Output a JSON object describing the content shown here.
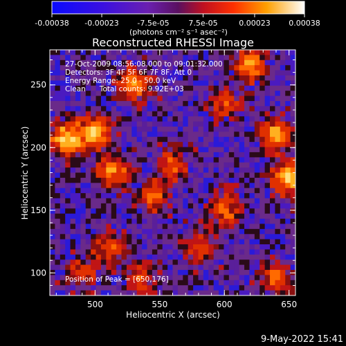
{
  "colorbar": {
    "ticks": [
      "-0.00038",
      "-0.00023",
      "-7.5e-05",
      "7.5e-05",
      "0.00023",
      "0.00038"
    ],
    "unit_label": "(photons cm⁻² s⁻¹ asec⁻²)",
    "colors": [
      "#1010ff",
      "#4010d0",
      "#7020a0",
      "#a02030",
      "#e02000",
      "#ff6000",
      "#ffb000",
      "#ffffff"
    ]
  },
  "chart_data": {
    "type": "heatmap",
    "title": "Reconstructed RHESSI Image",
    "xlabel": "Heliocentric X (arcsec)",
    "ylabel": "Heliocentric Y (arcsec)",
    "xlim": [
      465,
      655
    ],
    "ylim": [
      82,
      278
    ],
    "xticks": [
      "500",
      "550",
      "600",
      "650"
    ],
    "yticks": [
      "100",
      "150",
      "200",
      "250"
    ],
    "colorbar_range": [
      -0.00038,
      0.00038
    ],
    "peak": [
      650,
      176
    ],
    "hot_regions": [
      {
        "x": 478,
        "y": 207,
        "level": 1.0
      },
      {
        "x": 500,
        "y": 212,
        "level": 0.85
      },
      {
        "x": 515,
        "y": 180,
        "level": 0.7
      },
      {
        "x": 530,
        "y": 250,
        "level": 0.8
      },
      {
        "x": 545,
        "y": 160,
        "level": 0.55
      },
      {
        "x": 560,
        "y": 185,
        "level": 0.5
      },
      {
        "x": 620,
        "y": 265,
        "level": 0.75
      },
      {
        "x": 600,
        "y": 150,
        "level": 0.6
      },
      {
        "x": 650,
        "y": 176,
        "level": 1.0
      },
      {
        "x": 640,
        "y": 210,
        "level": 0.85
      },
      {
        "x": 580,
        "y": 120,
        "level": 0.5
      },
      {
        "x": 510,
        "y": 120,
        "level": 0.55
      },
      {
        "x": 490,
        "y": 100,
        "level": 0.45
      },
      {
        "x": 640,
        "y": 95,
        "level": 0.6
      },
      {
        "x": 535,
        "y": 95,
        "level": 0.45
      },
      {
        "x": 600,
        "y": 235,
        "level": 0.5
      }
    ]
  },
  "annotations": {
    "time_range": "27-Oct-2009 08:56:08.000 to 09:01:32.000",
    "detectors": "Detectors: 3F 4F 5F 6F 7F 8F, Att 0",
    "energy": "Energy Range: 25.0 - 50.0 keV",
    "clean": "Clean      Total counts: 9.92E+03",
    "peak": "Position of Peak = [650,176]"
  },
  "footer": {
    "date": "9-May-2022 15:41"
  }
}
